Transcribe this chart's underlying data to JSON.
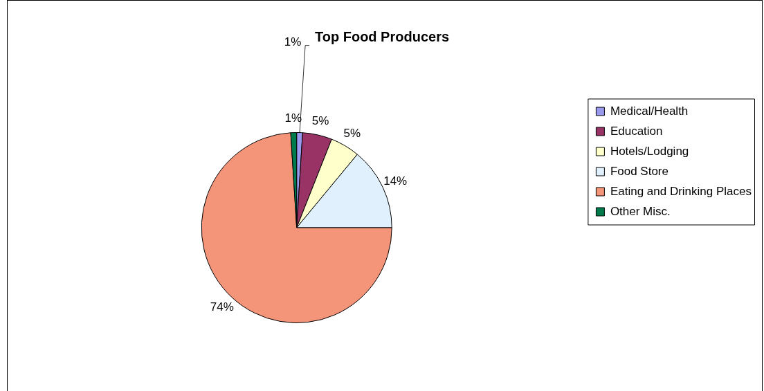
{
  "chart_data": {
    "type": "pie",
    "title": "Top Food Producers",
    "categories": [
      "Medical/Health",
      "Education",
      "Hotels/Lodging",
      "Food Store",
      "Eating and Drinking Places",
      "Other Misc."
    ],
    "values": [
      1,
      5,
      5,
      14,
      74,
      1
    ],
    "colors": [
      "#9999ee",
      "#993366",
      "#ffffcc",
      "#e0f0fc",
      "#f4957a",
      "#007a4a"
    ],
    "value_labels": [
      "1%",
      "5%",
      "5%",
      "14%",
      "74%",
      "1%"
    ],
    "legend": "right"
  }
}
